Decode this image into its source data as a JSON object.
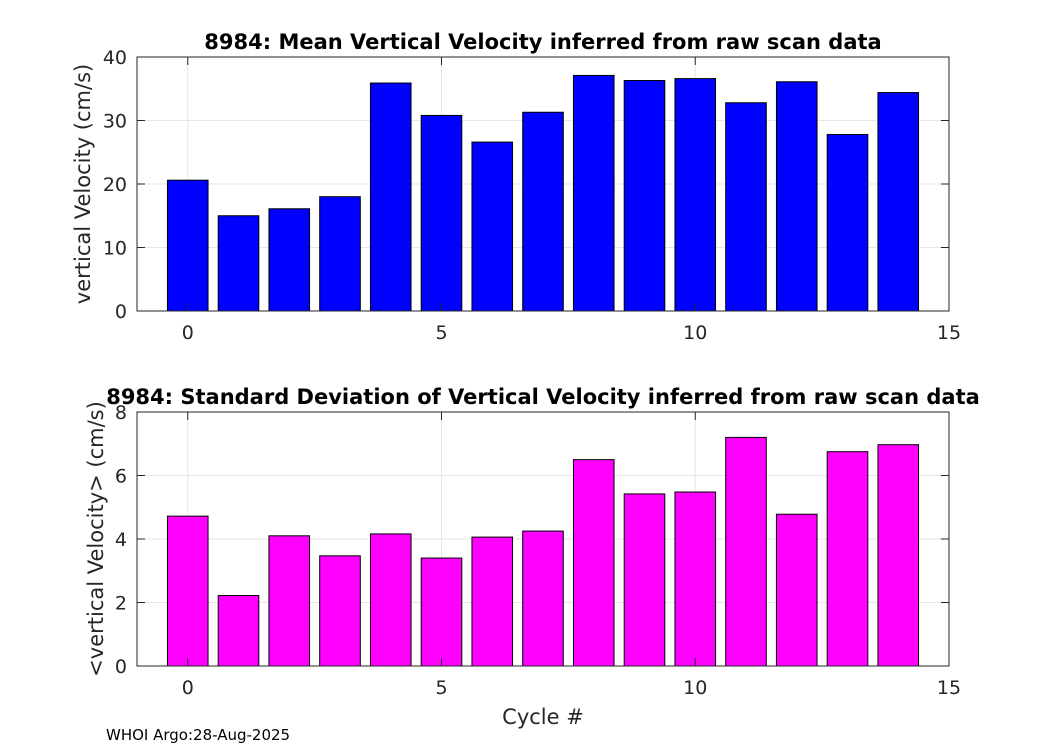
{
  "chart_data": [
    {
      "type": "bar",
      "title": "8984: Mean Vertical Velocity inferred from raw scan data",
      "xlabel": "",
      "ylabel": "vertical Velocity (cm/s)",
      "x": [
        0,
        1,
        2,
        3,
        4,
        5,
        6,
        7,
        8,
        9,
        10,
        11,
        12,
        13,
        14
      ],
      "values": [
        20.6,
        15.0,
        16.1,
        18.0,
        35.9,
        30.8,
        26.6,
        31.3,
        37.1,
        36.3,
        36.6,
        32.8,
        36.1,
        27.8,
        34.4
      ],
      "xlim": [
        -1,
        15
      ],
      "ylim": [
        0,
        40
      ],
      "xticks": [
        0,
        5,
        10,
        15
      ],
      "yticks": [
        0,
        10,
        20,
        30,
        40
      ],
      "grid": true,
      "color": "#0000ff"
    },
    {
      "type": "bar",
      "title": "8984: Standard Deviation of Vertical Velocity inferred from raw scan data",
      "xlabel": "Cycle #",
      "ylabel": "<vertical Velocity> (cm/s)",
      "x": [
        0,
        1,
        2,
        3,
        4,
        5,
        6,
        7,
        8,
        9,
        10,
        11,
        12,
        13,
        14
      ],
      "values": [
        4.72,
        2.22,
        4.1,
        3.47,
        4.16,
        3.4,
        4.06,
        4.25,
        6.5,
        5.42,
        5.48,
        7.2,
        4.78,
        6.75,
        6.97
      ],
      "xlim": [
        -1,
        15
      ],
      "ylim": [
        0,
        8
      ],
      "xticks": [
        0,
        5,
        10,
        15
      ],
      "yticks": [
        0,
        2,
        4,
        6,
        8
      ],
      "grid": true,
      "color": "#ff00ff"
    }
  ],
  "footer": "WHOI Argo:28-Aug-2025"
}
